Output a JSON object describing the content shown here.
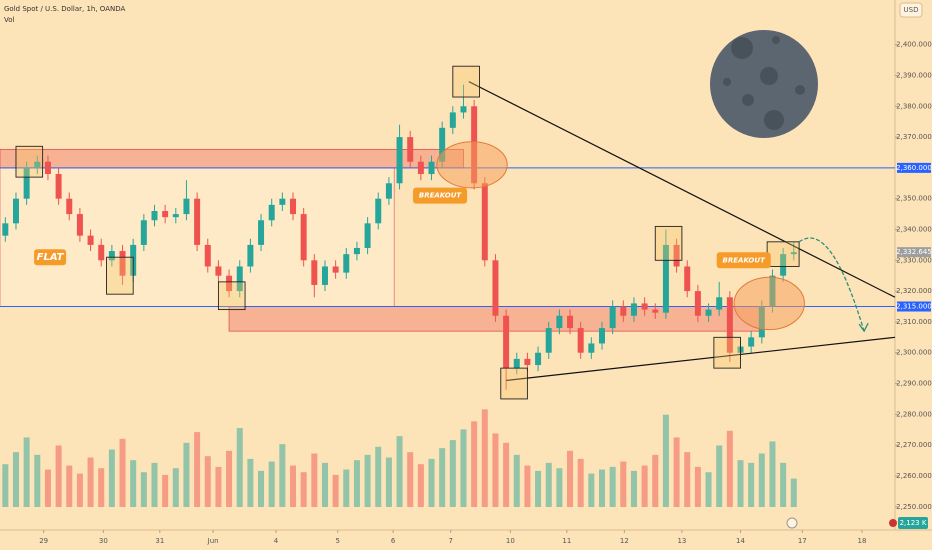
{
  "chart_data": {
    "type": "candlestick",
    "title": "Gold Spot / U.S. Dollar, 1h, OANDA",
    "volume_title": "Vol",
    "currency": "USD",
    "open": [
      2338,
      2342,
      2350,
      2360,
      2362,
      2358,
      2350,
      2345,
      2338,
      2335,
      2330,
      2333,
      2325,
      2335,
      2343,
      2346,
      2344,
      2345,
      2350,
      2335,
      2328,
      2325,
      2320,
      2328,
      2335,
      2343,
      2348,
      2350,
      2345,
      2330,
      2322,
      2328,
      2326,
      2332,
      2334,
      2342,
      2350,
      2355,
      2370,
      2362,
      2358,
      2362,
      2373,
      2378,
      2380,
      2355,
      2330,
      2312,
      2295,
      2298,
      2296,
      2300,
      2308,
      2312,
      2308,
      2300,
      2303,
      2308,
      2315,
      2312,
      2316,
      2314,
      2313,
      2335,
      2328,
      2320,
      2312,
      2314,
      2318,
      2300,
      2302,
      2305,
      2315,
      2325,
      2332
    ],
    "high": [
      2344,
      2352,
      2362,
      2364,
      2364,
      2360,
      2352,
      2347,
      2340,
      2337,
      2335,
      2335,
      2337,
      2345,
      2348,
      2348,
      2347,
      2356,
      2352,
      2337,
      2330,
      2327,
      2330,
      2337,
      2345,
      2350,
      2352,
      2352,
      2347,
      2332,
      2330,
      2330,
      2334,
      2336,
      2344,
      2352,
      2357,
      2374,
      2372,
      2364,
      2364,
      2375,
      2380,
      2387,
      2382,
      2357,
      2332,
      2314,
      2300,
      2300,
      2302,
      2310,
      2314,
      2314,
      2310,
      2305,
      2310,
      2317,
      2317,
      2318,
      2318,
      2316,
      2340,
      2337,
      2330,
      2322,
      2316,
      2323,
      2320,
      2304,
      2307,
      2317,
      2327,
      2334,
      2336
    ],
    "low": [
      2336,
      2340,
      2348,
      2358,
      2356,
      2348,
      2343,
      2336,
      2333,
      2328,
      2328,
      2322,
      2323,
      2333,
      2341,
      2342,
      2342,
      2343,
      2333,
      2326,
      2323,
      2318,
      2318,
      2326,
      2333,
      2341,
      2346,
      2343,
      2328,
      2318,
      2320,
      2324,
      2324,
      2330,
      2332,
      2340,
      2348,
      2353,
      2360,
      2356,
      2356,
      2360,
      2371,
      2376,
      2353,
      2328,
      2310,
      2288,
      2293,
      2294,
      2294,
      2298,
      2306,
      2306,
      2298,
      2298,
      2301,
      2306,
      2310,
      2310,
      2312,
      2311,
      2311,
      2326,
      2318,
      2310,
      2310,
      2312,
      2297,
      2298,
      2300,
      2303,
      2313,
      2323,
      2330
    ],
    "close": [
      2342,
      2350,
      2360,
      2362,
      2358,
      2350,
      2345,
      2338,
      2335,
      2330,
      2333,
      2325,
      2335,
      2343,
      2346,
      2344,
      2345,
      2350,
      2335,
      2328,
      2325,
      2320,
      2328,
      2335,
      2343,
      2348,
      2350,
      2345,
      2330,
      2322,
      2328,
      2326,
      2332,
      2334,
      2342,
      2350,
      2355,
      2370,
      2362,
      2358,
      2362,
      2373,
      2378,
      2380,
      2355,
      2330,
      2312,
      2295,
      2298,
      2296,
      2300,
      2308,
      2312,
      2308,
      2300,
      2303,
      2308,
      2315,
      2312,
      2316,
      2314,
      2313,
      2335,
      2328,
      2320,
      2312,
      2314,
      2318,
      2300,
      2302,
      2305,
      2315,
      2325,
      2332,
      2332.645
    ],
    "volume": [
      3200,
      4100,
      5200,
      3900,
      2800,
      4600,
      3100,
      2500,
      3700,
      2900,
      4300,
      5100,
      3500,
      2600,
      3300,
      2400,
      2900,
      4800,
      5600,
      3800,
      3000,
      4200,
      5900,
      3600,
      2700,
      3400,
      4700,
      3100,
      2600,
      4000,
      3300,
      2400,
      2800,
      3500,
      3900,
      4500,
      3700,
      5300,
      4100,
      3200,
      3600,
      4400,
      5000,
      5800,
      6400,
      7300,
      5500,
      4800,
      3900,
      3100,
      2700,
      3300,
      2900,
      4200,
      3600,
      2500,
      2800,
      3000,
      3400,
      2700,
      3100,
      3900,
      6900,
      5200,
      4100,
      3000,
      2600,
      4600,
      5700,
      3500,
      3300,
      4000,
      4900,
      3300,
      2123
    ],
    "volume_label": "2,123 K",
    "xlim": [
      -0.5,
      83.5
    ],
    "ylim": [
      2247,
      2408
    ],
    "volume_lim": [
      0,
      8000
    ],
    "yticks": [
      {
        "value": 2250,
        "label": "2,250.000"
      },
      {
        "value": 2260,
        "label": "2,260.000"
      },
      {
        "value": 2270,
        "label": "2,270.000"
      },
      {
        "value": 2280,
        "label": "2,280.000"
      },
      {
        "value": 2290,
        "label": "2,290.000"
      },
      {
        "value": 2300,
        "label": "2,300.000"
      },
      {
        "value": 2310,
        "label": "2,310.000"
      },
      {
        "value": 2320,
        "label": "2,320.000"
      },
      {
        "value": 2330,
        "label": "2,330.000"
      },
      {
        "value": 2340,
        "label": "2,340.000"
      },
      {
        "value": 2350,
        "label": "2,350.000"
      },
      {
        "value": 2370,
        "label": "2,370.000"
      },
      {
        "value": 2380,
        "label": "2,380.000"
      },
      {
        "value": 2390,
        "label": "2,390.000"
      },
      {
        "value": 2400,
        "label": "2,400.000"
      }
    ],
    "xticks": [
      {
        "value": 3.6,
        "label": "29"
      },
      {
        "value": 9.2,
        "label": "30"
      },
      {
        "value": 14.5,
        "label": "31"
      },
      {
        "value": 19.5,
        "label": "Jun"
      },
      {
        "value": 25.4,
        "label": "4"
      },
      {
        "value": 31.2,
        "label": "5"
      },
      {
        "value": 36.4,
        "label": "6"
      },
      {
        "value": 41.8,
        "label": "7"
      },
      {
        "value": 47.4,
        "label": "10"
      },
      {
        "value": 52.7,
        "label": "11"
      },
      {
        "value": 58.1,
        "label": "12"
      },
      {
        "value": 63.5,
        "label": "13"
      },
      {
        "value": 69,
        "label": "14"
      },
      {
        "value": 74.8,
        "label": "17"
      },
      {
        "value": 80.4,
        "label": "18"
      }
    ],
    "levels": [
      {
        "value": 2360,
        "label": "2,360.000",
        "color": "#2962ff"
      },
      {
        "value": 2332.645,
        "label": "2,332.645",
        "color": "#9e9e9e"
      },
      {
        "value": 2315,
        "label": "2,315.000",
        "color": "#2962ff"
      }
    ],
    "zones": [
      [
        -0.5,
        43,
        2360,
        2366
      ],
      [
        21,
        71,
        2307,
        2315
      ]
    ],
    "flat_range": [
      -0.5,
      36.5,
      2315,
      2360
    ],
    "trendlines": [
      [
        43.5,
        2388,
        83.5,
        2318
      ],
      [
        47,
        2291,
        83.5,
        2305
      ]
    ],
    "boxes": [
      [
        1,
        3.5,
        2357,
        2367
      ],
      [
        9.5,
        12,
        2319,
        2331
      ],
      [
        20,
        22.5,
        2314,
        2323
      ],
      [
        42,
        44.5,
        2383,
        2393
      ],
      [
        46.5,
        49,
        2285,
        2295
      ],
      [
        61,
        63.5,
        2330,
        2341
      ],
      [
        66.5,
        69,
        2295,
        2305
      ],
      [
        71.5,
        74.5,
        2328,
        2336
      ]
    ],
    "circles": [
      [
        43.8,
        2361,
        3.3,
        7.5
      ],
      [
        71.7,
        2316,
        3.3,
        8.5
      ]
    ],
    "annotations": [
      {
        "text": "FLAT",
        "x": 4.2,
        "y": 2331
      },
      {
        "text": "BREAKOUT",
        "x": 40.8,
        "y": 2351
      },
      {
        "text": "BREAKOUT",
        "x": 69.3,
        "y": 2330
      }
    ],
    "projection": [
      [
        74.5,
        2336
      ],
      [
        77,
        2342
      ],
      [
        79,
        2325
      ],
      [
        80.6,
        2307
      ]
    ],
    "up_color": "#26a69a",
    "down_color": "#ef5350"
  }
}
